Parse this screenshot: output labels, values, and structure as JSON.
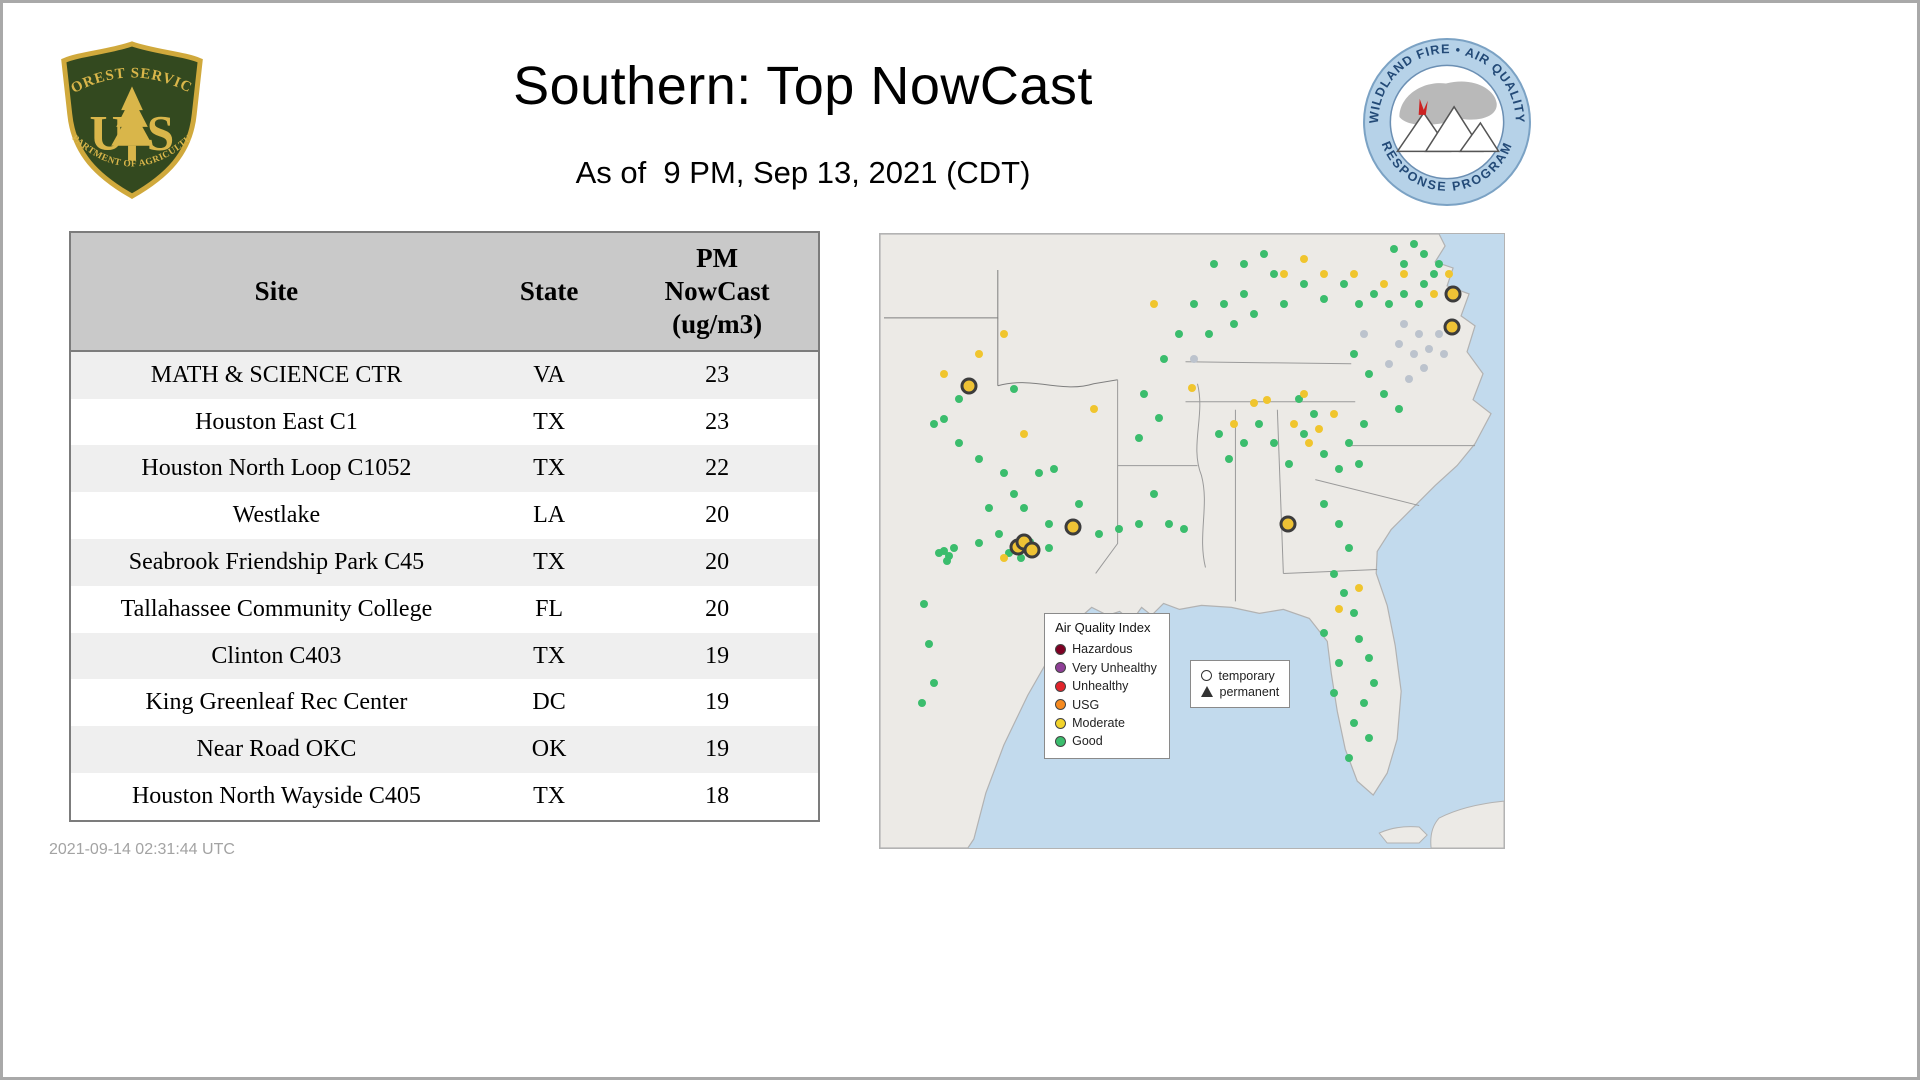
{
  "header": {
    "title": "Southern: Top NowCast",
    "subtitle": "As of  9 PM, Sep 13, 2021 (CDT)",
    "fs_logo": {
      "arc_top": "FOREST SERVICE",
      "letter_u": "U",
      "letter_s": "S",
      "arc_bottom": "DEPARTMENT OF AGRICULTURE"
    },
    "aq_logo": {
      "arc_top": "WILDLAND FIRE • AIR QUALITY",
      "arc_bottom": "RESPONSE PROGRAM"
    }
  },
  "table": {
    "columns": [
      "Site",
      "State",
      "PM\nNowCast\n(ug/m3)"
    ],
    "rows": [
      [
        "MATH & SCIENCE CTR",
        "VA",
        "23"
      ],
      [
        "Houston East C1",
        "TX",
        "23"
      ],
      [
        "Houston North Loop C1052",
        "TX",
        "22"
      ],
      [
        "Westlake",
        "LA",
        "20"
      ],
      [
        "Seabrook Friendship Park C45",
        "TX",
        "20"
      ],
      [
        "Tallahassee Community College",
        "FL",
        "20"
      ],
      [
        "Clinton C403",
        "TX",
        "19"
      ],
      [
        "King Greenleaf Rec Center",
        "DC",
        "19"
      ],
      [
        "Near Road OKC",
        "OK",
        "19"
      ],
      [
        "Houston North Wayside C405",
        "TX",
        "18"
      ]
    ]
  },
  "map": {
    "legend": {
      "title": "Air Quality Index",
      "items": [
        {
          "label": "Hazardous",
          "color": "#7e0023"
        },
        {
          "label": "Very Unhealthy",
          "color": "#8f3f97"
        },
        {
          "label": "Unhealthy",
          "color": "#e1242b"
        },
        {
          "label": "USG",
          "color": "#f68a1f"
        },
        {
          "label": "Moderate",
          "color": "#f2d32b"
        },
        {
          "label": "Good",
          "color": "#3bbd6d"
        }
      ]
    },
    "marker_legend": {
      "temporary": "temporary",
      "permanent": "permanent"
    },
    "colors": {
      "good": "#3bbd6d",
      "moderate": "#f0c52e",
      "inactive": "#bcc3cd",
      "temporary": "#eec235",
      "water": "#c2daed",
      "land": "#eceae6"
    },
    "dots": {
      "good": [
        [
          10.3,
          30.1
        ],
        [
          12.7,
          34.1
        ],
        [
          15.9,
          36.6
        ],
        [
          19.9,
          39.0
        ],
        [
          21.5,
          42.3
        ],
        [
          17.5,
          44.7
        ],
        [
          23.1,
          44.7
        ],
        [
          25.5,
          39.0
        ],
        [
          27.9,
          38.2
        ],
        [
          27.1,
          47.2
        ],
        [
          19.1,
          48.8
        ],
        [
          15.9,
          50.4
        ],
        [
          11.9,
          51.2
        ],
        [
          10.3,
          51.7
        ],
        [
          11.1,
          52.4
        ],
        [
          9.5,
          52.0
        ],
        [
          10.7,
          53.3
        ],
        [
          20.7,
          52.0
        ],
        [
          27.1,
          51.2
        ],
        [
          7.1,
          60.2
        ],
        [
          7.9,
          66.7
        ],
        [
          8.7,
          73.2
        ],
        [
          6.7,
          76.4
        ],
        [
          8.7,
          30.9
        ],
        [
          12.7,
          26.8
        ],
        [
          21.5,
          25.2
        ],
        [
          35.1,
          48.8
        ],
        [
          38.3,
          48.0
        ],
        [
          41.5,
          47.2
        ],
        [
          43.9,
          42.3
        ],
        [
          46.3,
          47.2
        ],
        [
          48.7,
          48.0
        ],
        [
          41.5,
          33.3
        ],
        [
          42.3,
          26.0
        ],
        [
          45.5,
          20.3
        ],
        [
          47.9,
          16.3
        ],
        [
          50.3,
          11.4
        ],
        [
          52.7,
          16.3
        ],
        [
          55.1,
          11.4
        ],
        [
          56.7,
          14.6
        ],
        [
          58.3,
          9.8
        ],
        [
          59.9,
          13.0
        ],
        [
          54.3,
          32.5
        ],
        [
          55.9,
          36.6
        ],
        [
          58.3,
          34.1
        ],
        [
          60.7,
          30.9
        ],
        [
          63.1,
          34.1
        ],
        [
          65.5,
          37.4
        ],
        [
          67.9,
          32.5
        ],
        [
          67.1,
          26.8
        ],
        [
          69.6,
          29.3
        ],
        [
          71.2,
          35.8
        ],
        [
          73.6,
          38.2
        ],
        [
          64.7,
          11.4
        ],
        [
          67.9,
          8.1
        ],
        [
          71.2,
          10.6
        ],
        [
          74.4,
          8.1
        ],
        [
          76.8,
          11.4
        ],
        [
          79.2,
          9.8
        ],
        [
          81.6,
          11.4
        ],
        [
          84.0,
          9.8
        ],
        [
          86.4,
          11.4
        ],
        [
          87.2,
          8.1
        ],
        [
          88.8,
          6.5
        ],
        [
          76.0,
          19.5
        ],
        [
          78.4,
          22.8
        ],
        [
          80.8,
          26.0
        ],
        [
          83.2,
          28.5
        ],
        [
          77.6,
          30.9
        ],
        [
          75.2,
          34.1
        ],
        [
          76.8,
          37.4
        ],
        [
          71.2,
          43.9
        ],
        [
          73.6,
          47.2
        ],
        [
          75.2,
          51.2
        ],
        [
          72.8,
          55.3
        ],
        [
          74.4,
          58.5
        ],
        [
          76.0,
          61.8
        ],
        [
          76.8,
          65.9
        ],
        [
          78.4,
          69.1
        ],
        [
          79.2,
          73.2
        ],
        [
          77.6,
          76.4
        ],
        [
          76.0,
          79.7
        ],
        [
          78.4,
          82.1
        ],
        [
          75.2,
          85.4
        ],
        [
          72.8,
          74.8
        ],
        [
          73.6,
          69.9
        ],
        [
          71.2,
          65.0
        ],
        [
          84.0,
          4.9
        ],
        [
          87.2,
          3.3
        ],
        [
          89.6,
          4.9
        ],
        [
          82.4,
          2.4
        ],
        [
          85.6,
          1.6
        ],
        [
          58.3,
          4.9
        ],
        [
          61.5,
          3.3
        ],
        [
          63.1,
          6.5
        ],
        [
          53.5,
          4.9
        ],
        [
          44.7,
          30.0
        ],
        [
          31.9,
          44.0
        ],
        [
          24.0,
          50.2
        ],
        [
          22.6,
          52.8
        ]
      ],
      "moderate": [
        [
          15.9,
          19.5
        ],
        [
          19.9,
          16.3
        ],
        [
          10.3,
          22.8
        ],
        [
          34.3,
          28.5
        ],
        [
          23.1,
          32.5
        ],
        [
          43.9,
          11.4
        ],
        [
          64.7,
          6.5
        ],
        [
          67.9,
          4.1
        ],
        [
          71.2,
          6.5
        ],
        [
          66.3,
          30.9
        ],
        [
          68.7,
          34.1
        ],
        [
          70.4,
          31.7
        ],
        [
          72.8,
          29.3
        ],
        [
          67.9,
          26.0
        ],
        [
          80.8,
          8.1
        ],
        [
          84.0,
          6.5
        ],
        [
          88.8,
          9.8
        ],
        [
          91.2,
          6.5
        ],
        [
          76.0,
          6.5
        ],
        [
          73.6,
          61.0
        ],
        [
          76.8,
          57.7
        ],
        [
          56.7,
          30.9
        ],
        [
          59.9,
          27.6
        ],
        [
          19.9,
          52.8
        ],
        [
          50.0,
          25.0
        ],
        [
          62.0,
          27.0
        ]
      ],
      "inactive": [
        [
          84.0,
          14.6
        ],
        [
          86.4,
          16.3
        ],
        [
          88.0,
          18.7
        ],
        [
          89.6,
          16.3
        ],
        [
          85.6,
          19.5
        ],
        [
          83.2,
          17.9
        ],
        [
          90.4,
          19.5
        ],
        [
          87.2,
          21.9
        ],
        [
          84.8,
          23.6
        ],
        [
          81.6,
          21.1
        ],
        [
          77.6,
          16.3
        ],
        [
          50.3,
          20.3
        ]
      ],
      "temporary": [
        [
          14.3,
          24.7
        ],
        [
          22.1,
          50.9
        ],
        [
          23.1,
          50.1
        ],
        [
          24.4,
          51.5
        ],
        [
          30.9,
          47.8
        ],
        [
          65.4,
          47.3
        ],
        [
          91.8,
          9.8
        ],
        [
          91.7,
          15.1
        ]
      ]
    }
  },
  "footer": {
    "timestamp": "2021-09-14 02:31:44 UTC"
  }
}
